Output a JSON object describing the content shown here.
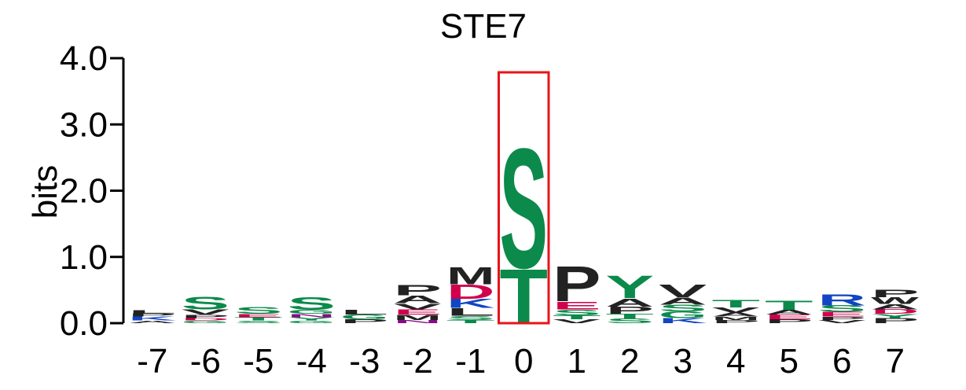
{
  "chart_data": {
    "type": "sequence-logo",
    "title": "STE7",
    "ylabel": "bits",
    "ylim": [
      0,
      4
    ],
    "y_ticks": [
      "0.0",
      "1.0",
      "2.0",
      "3.0",
      "4.0"
    ],
    "highlight_position": "0",
    "residue_colors": {
      "P": "#222222",
      "L": "#222222",
      "M": "#222222",
      "V": "#222222",
      "A": "#222222",
      "I": "#222222",
      "F": "#222222",
      "W": "#222222",
      "S": "#0b8a4b",
      "T": "#0b8a4b",
      "Y": "#0b8a4b",
      "G": "#0b8a4b",
      "C": "#0b8a4b",
      "N": "#8a0a86",
      "Q": "#8a0a86",
      "D": "#d1004d",
      "E": "#d1004d",
      "K": "#1145c4",
      "R": "#1145c4",
      "H": "#1145c4"
    },
    "highlight_color": "#e8141a",
    "positions": [
      {
        "label": "-7",
        "stack": [
          [
            "A",
            0.04
          ],
          [
            "K",
            0.06
          ],
          [
            "P",
            0.05
          ],
          [
            "L",
            0.05
          ]
        ]
      },
      {
        "label": "-6",
        "stack": [
          [
            "G",
            0.04
          ],
          [
            "D",
            0.04
          ],
          [
            "P",
            0.05
          ],
          [
            "V",
            0.08
          ],
          [
            "S",
            0.2
          ]
        ]
      },
      {
        "label": "-5",
        "stack": [
          [
            "S",
            0.04
          ],
          [
            "T",
            0.05
          ],
          [
            "E",
            0.05
          ],
          [
            "S",
            0.1
          ]
        ]
      },
      {
        "label": "-4",
        "stack": [
          [
            "G",
            0.04
          ],
          [
            "Y",
            0.05
          ],
          [
            "N",
            0.05
          ],
          [
            "G",
            0.06
          ],
          [
            "S",
            0.2
          ]
        ]
      },
      {
        "label": "-3",
        "stack": [
          [
            "P",
            0.06
          ],
          [
            "G",
            0.07
          ],
          [
            "L",
            0.07
          ]
        ]
      },
      {
        "label": "-2",
        "stack": [
          [
            "N",
            0.05
          ],
          [
            "M",
            0.08
          ],
          [
            "E",
            0.08
          ],
          [
            "V",
            0.09
          ],
          [
            "A",
            0.12
          ],
          [
            "P",
            0.16
          ]
        ]
      },
      {
        "label": "-1",
        "stack": [
          [
            "T",
            0.05
          ],
          [
            "S",
            0.06
          ],
          [
            "L",
            0.12
          ],
          [
            "K",
            0.14
          ],
          [
            "D",
            0.22
          ],
          [
            "M",
            0.27
          ]
        ]
      },
      {
        "label": "0",
        "stack": [
          [
            "T",
            0.84
          ],
          [
            "S",
            1.86
          ]
        ]
      },
      {
        "label": "1",
        "stack": [
          [
            "V",
            0.06
          ],
          [
            "T",
            0.06
          ],
          [
            "S",
            0.09
          ],
          [
            "E",
            0.12
          ],
          [
            "P",
            0.55
          ]
        ]
      },
      {
        "label": "2",
        "stack": [
          [
            "S",
            0.07
          ],
          [
            "T",
            0.07
          ],
          [
            "P",
            0.11
          ],
          [
            "A",
            0.13
          ],
          [
            "Y",
            0.35
          ]
        ]
      },
      {
        "label": "3",
        "stack": [
          [
            "K",
            0.08
          ],
          [
            "G",
            0.1
          ],
          [
            "S",
            0.1
          ],
          [
            "A",
            0.11
          ],
          [
            "V",
            0.2
          ]
        ]
      },
      {
        "label": "4",
        "stack": [
          [
            "P",
            0.05
          ],
          [
            "M",
            0.05
          ],
          [
            "A",
            0.06
          ],
          [
            "V",
            0.08
          ],
          [
            "T",
            0.12
          ]
        ]
      },
      {
        "label": "5",
        "stack": [
          [
            "P",
            0.06
          ],
          [
            "E",
            0.07
          ],
          [
            "A",
            0.07
          ],
          [
            "T",
            0.14
          ]
        ]
      },
      {
        "label": "6",
        "stack": [
          [
            "V",
            0.05
          ],
          [
            "P",
            0.05
          ],
          [
            "E",
            0.07
          ],
          [
            "S",
            0.1
          ],
          [
            "R",
            0.17
          ]
        ]
      },
      {
        "label": "7",
        "stack": [
          [
            "P",
            0.08
          ],
          [
            "Y",
            0.06
          ],
          [
            "D",
            0.07
          ],
          [
            "A",
            0.08
          ],
          [
            "W",
            0.1
          ],
          [
            "P",
            0.12
          ]
        ]
      }
    ]
  }
}
